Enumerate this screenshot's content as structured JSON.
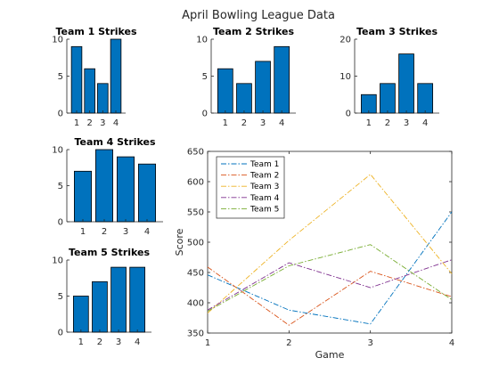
{
  "title": "April Bowling League Data",
  "bar_color": "#0072bd",
  "chart_data": [
    {
      "type": "bar",
      "title": "Team 1 Strikes",
      "categories": [
        "1",
        "2",
        "3",
        "4"
      ],
      "values": [
        9,
        6,
        4,
        10
      ],
      "ylim": [
        0,
        10
      ],
      "yticks": [
        0,
        5,
        10
      ]
    },
    {
      "type": "bar",
      "title": "Team 2 Strikes",
      "categories": [
        "1",
        "2",
        "3",
        "4"
      ],
      "values": [
        6,
        4,
        7,
        9
      ],
      "ylim": [
        0,
        10
      ],
      "yticks": [
        0,
        5,
        10
      ]
    },
    {
      "type": "bar",
      "title": "Team 3 Strikes",
      "categories": [
        "1",
        "2",
        "3",
        "4"
      ],
      "values": [
        5,
        8,
        16,
        8
      ],
      "ylim": [
        0,
        20
      ],
      "yticks": [
        0,
        10,
        20
      ]
    },
    {
      "type": "bar",
      "title": "Team 4 Strikes",
      "categories": [
        "1",
        "2",
        "3",
        "4"
      ],
      "values": [
        7,
        10,
        9,
        8
      ],
      "ylim": [
        0,
        10
      ],
      "yticks": [
        0,
        5,
        10
      ]
    },
    {
      "type": "bar",
      "title": "Team 5 Strikes",
      "categories": [
        "1",
        "2",
        "3",
        "4"
      ],
      "values": [
        5,
        7,
        9,
        9
      ],
      "ylim": [
        0,
        10
      ],
      "yticks": [
        0,
        5,
        10
      ]
    },
    {
      "type": "line",
      "title": "",
      "xlabel": "Game",
      "ylabel": "Score",
      "x": [
        1,
        2,
        3,
        4
      ],
      "xlim": [
        1,
        4
      ],
      "ylim": [
        350,
        650
      ],
      "xticks": [
        1,
        2,
        3,
        4
      ],
      "yticks": [
        350,
        400,
        450,
        500,
        550,
        600,
        650
      ],
      "line_style": "dash-dot",
      "legend_position": "top-left",
      "series": [
        {
          "name": "Team 1",
          "color": "#0072bd",
          "values": [
            446,
            388,
            365,
            550
          ]
        },
        {
          "name": "Team 2",
          "color": "#d95319",
          "values": [
            459,
            363,
            452,
            410
          ]
        },
        {
          "name": "Team 3",
          "color": "#edb120",
          "values": [
            383,
            503,
            612,
            448
          ]
        },
        {
          "name": "Team 4",
          "color": "#7e2f8e",
          "values": [
            388,
            466,
            425,
            471
          ]
        },
        {
          "name": "Team 5",
          "color": "#77ac30",
          "values": [
            386,
            461,
            496,
            405
          ]
        }
      ]
    }
  ]
}
